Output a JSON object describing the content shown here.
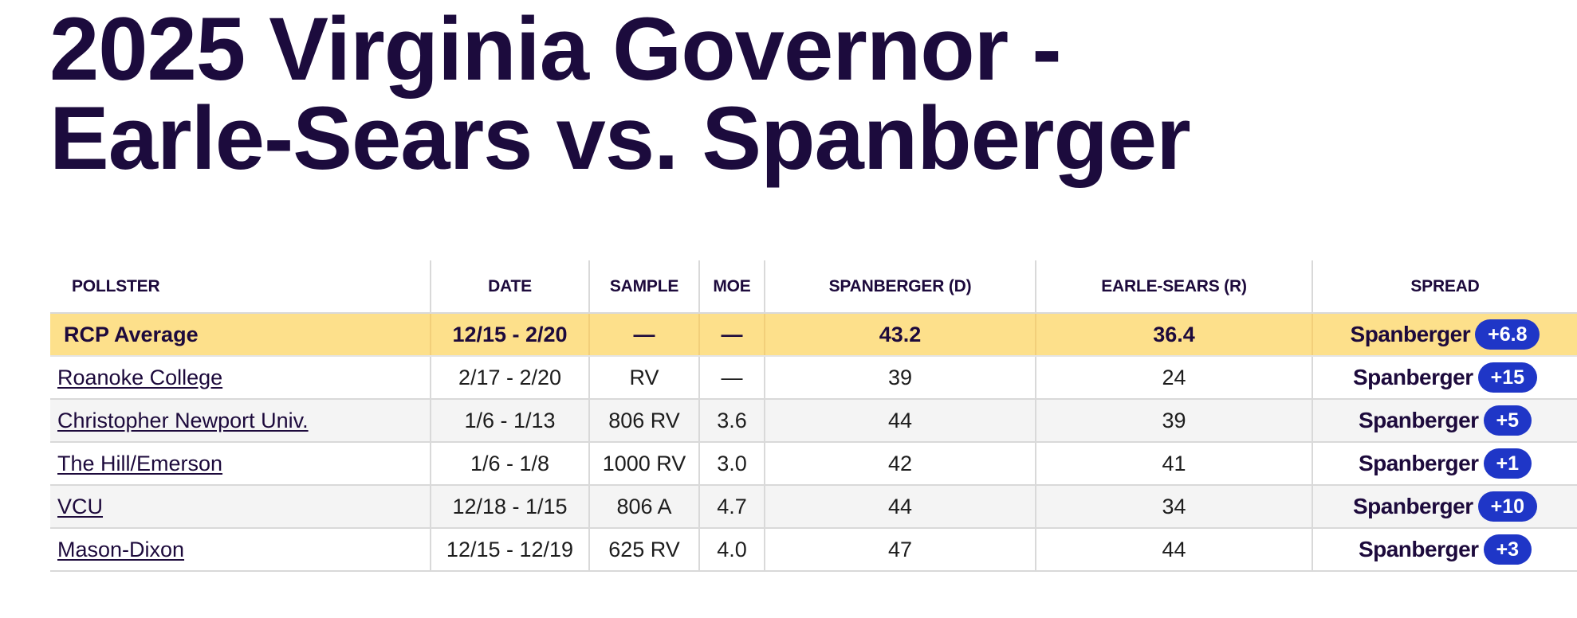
{
  "title": {
    "line1": "2025 Virginia Governor -",
    "line2": "Earle-Sears vs. Spanberger"
  },
  "colors": {
    "title": "#1c0b3d",
    "average_row_bg": "#fde08b",
    "badge_bg": "#1f36c7",
    "stripe_bg": "#f4f4f4"
  },
  "table": {
    "columns": [
      "POLLSTER",
      "DATE",
      "SAMPLE",
      "MOE",
      "SPANBERGER (D)",
      "EARLE-SEARS (R)",
      "SPREAD"
    ],
    "average": {
      "pollster": "RCP Average",
      "date": "12/15 - 2/20",
      "sample": "—",
      "moe": "—",
      "spanberger": "43.2",
      "earle_sears": "36.4",
      "spread_leader": "Spanberger",
      "spread_value": "+6.8"
    },
    "rows": [
      {
        "pollster": "Roanoke College",
        "date": "2/17 - 2/20",
        "sample": "RV",
        "moe": "—",
        "spanberger": "39",
        "earle_sears": "24",
        "spread_leader": "Spanberger",
        "spread_value": "+15"
      },
      {
        "pollster": "Christopher Newport Univ.",
        "date": "1/6 - 1/13",
        "sample": "806 RV",
        "moe": "3.6",
        "spanberger": "44",
        "earle_sears": "39",
        "spread_leader": "Spanberger",
        "spread_value": "+5"
      },
      {
        "pollster": "The Hill/Emerson",
        "date": "1/6 - 1/8",
        "sample": "1000 RV",
        "moe": "3.0",
        "spanberger": "42",
        "earle_sears": "41",
        "spread_leader": "Spanberger",
        "spread_value": "+1"
      },
      {
        "pollster": "VCU",
        "date": "12/18 - 1/15",
        "sample": "806 A",
        "moe": "4.7",
        "spanberger": "44",
        "earle_sears": "34",
        "spread_leader": "Spanberger",
        "spread_value": "+10"
      },
      {
        "pollster": "Mason-Dixon",
        "date": "12/15 - 12/19",
        "sample": "625 RV",
        "moe": "4.0",
        "spanberger": "47",
        "earle_sears": "44",
        "spread_leader": "Spanberger",
        "spread_value": "+3"
      }
    ]
  }
}
